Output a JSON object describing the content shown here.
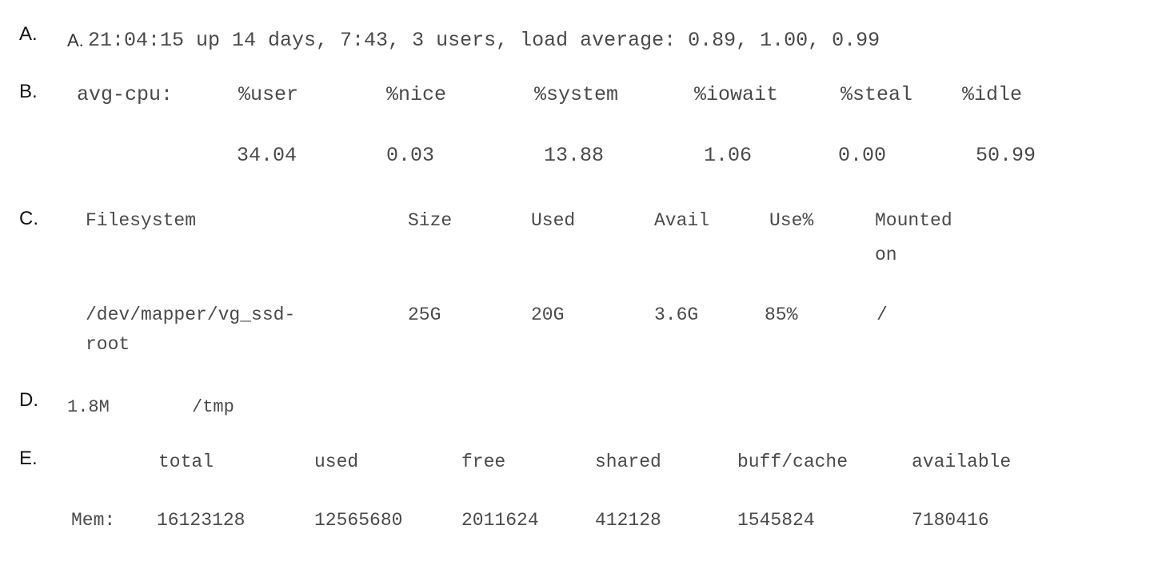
{
  "option_labels": {
    "a": "A.",
    "b": "B.",
    "c": "C.",
    "d": "D.",
    "e": "E."
  },
  "option_a": {
    "prefix": "A.",
    "text": "21:04:15 up 14 days, 7:43, 3 users, load average: 0.89, 1.00, 0.99"
  },
  "option_b": {
    "headers": [
      "avg-cpu:",
      "%user",
      "%nice",
      "%system",
      "%iowait",
      "%steal",
      "%idle"
    ],
    "values": [
      "34.04",
      "0.03",
      "13.88",
      "1.06",
      "0.00",
      "50.99"
    ]
  },
  "option_c": {
    "headers": [
      "Filesystem",
      "Size",
      "Used",
      "Avail",
      "Use%",
      "Mounted",
      "on"
    ],
    "row": {
      "fs_line1": "/dev/mapper/vg_ssd-",
      "fs_line2": "root",
      "size": "25G",
      "used": "20G",
      "avail": "3.6G",
      "use_pct": "85%",
      "mount": "/"
    }
  },
  "option_d": {
    "size": "1.8M",
    "path": "/tmp"
  },
  "option_e": {
    "headers": [
      "total",
      "used",
      "free",
      "shared",
      "buff/cache",
      "available"
    ],
    "row": [
      "Mem:",
      "16123128",
      "12565680",
      "2011624",
      "412128",
      "1545824",
      "7180416"
    ]
  }
}
